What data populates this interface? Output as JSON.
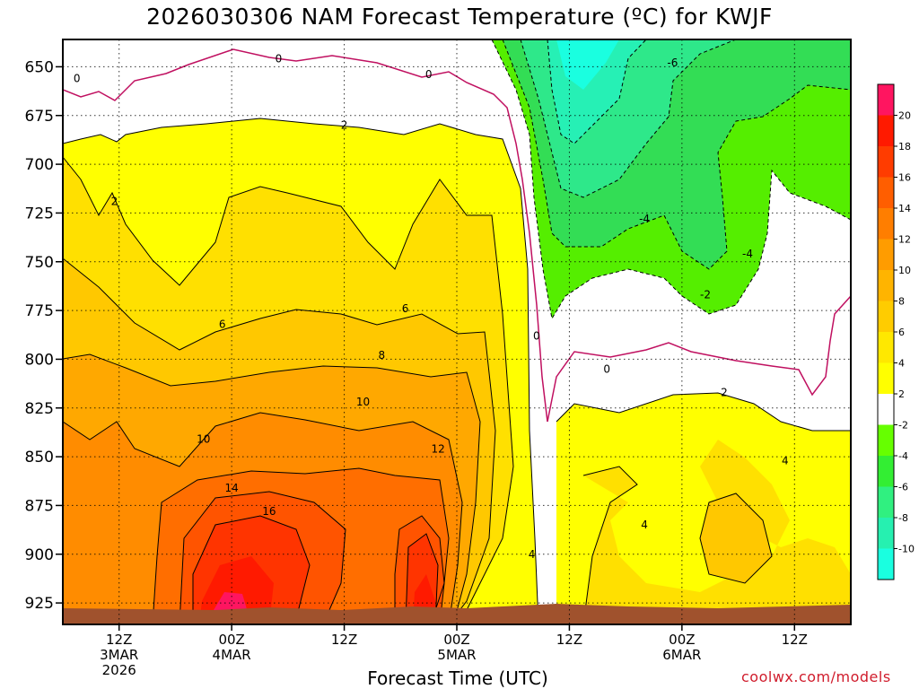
{
  "title": "2026030306 NAM Forecast Temperature (ºC) for KWJF",
  "xlabel": "Forecast Time (UTC)",
  "watermark": "coolwx.com/models",
  "chart_data": {
    "type": "heatmap",
    "title": "2026030306 NAM Forecast Temperature (ºC) for KWJF",
    "xlabel": "Forecast Time (UTC)",
    "ylabel": "",
    "y_axis": {
      "ticks": [
        650,
        675,
        700,
        725,
        750,
        775,
        800,
        825,
        850,
        875,
        900,
        925
      ],
      "range": [
        636,
        936
      ],
      "inverted": true
    },
    "x_axis": {
      "range_hours": [
        6,
        90
      ],
      "ticks": [
        {
          "hour": 12,
          "lines": [
            "12Z",
            "3MAR",
            "2026"
          ]
        },
        {
          "hour": 24,
          "lines": [
            "00Z",
            "4MAR"
          ]
        },
        {
          "hour": 36,
          "lines": [
            "12Z"
          ]
        },
        {
          "hour": 48,
          "lines": [
            "00Z",
            "5MAR"
          ]
        },
        {
          "hour": 60,
          "lines": [
            "12Z"
          ]
        },
        {
          "hour": 72,
          "lines": [
            "00Z",
            "6MAR"
          ]
        },
        {
          "hour": 84,
          "lines": [
            "12Z"
          ]
        }
      ]
    },
    "grid": true,
    "colorbar": {
      "labels": [
        20,
        18,
        16,
        14,
        12,
        10,
        8,
        6,
        4,
        2,
        -2,
        -4,
        -6,
        -8,
        -10
      ],
      "colors": [
        "#ff1560",
        "#ff1a00",
        "#ff3c00",
        "#ff5e00",
        "#ff7e00",
        "#ff9c00",
        "#ffb400",
        "#ffcc00",
        "#ffe800",
        "#ffff00",
        "#ffffff",
        "#66ff00",
        "#33ee33",
        "#30f080",
        "#26f0b0",
        "#1affe0"
      ]
    },
    "contour_labels": [
      {
        "text": "0",
        "hour": 7.5,
        "pressure": 656
      },
      {
        "text": "0",
        "hour": 29,
        "pressure": 646
      },
      {
        "text": "0",
        "hour": 56.5,
        "pressure": 788
      },
      {
        "text": "0",
        "hour": 64,
        "pressure": 805
      },
      {
        "text": "0",
        "hour": 45,
        "pressure": 654
      },
      {
        "text": "2",
        "hour": 11.5,
        "pressure": 719
      },
      {
        "text": "2",
        "hour": 36,
        "pressure": 680
      },
      {
        "text": "2",
        "hour": 76.5,
        "pressure": 817
      },
      {
        "text": "-2",
        "hour": 74.5,
        "pressure": 767
      },
      {
        "text": "-4",
        "hour": 68,
        "pressure": 728
      },
      {
        "text": "-4",
        "hour": 79,
        "pressure": 746
      },
      {
        "text": "-6",
        "hour": 71,
        "pressure": 648
      },
      {
        "text": "4",
        "hour": 56,
        "pressure": 900
      },
      {
        "text": "4",
        "hour": 68,
        "pressure": 885
      },
      {
        "text": "4",
        "hour": 83,
        "pressure": 852
      },
      {
        "text": "6",
        "hour": 23,
        "pressure": 782
      },
      {
        "text": "6",
        "hour": 42.5,
        "pressure": 774
      },
      {
        "text": "8",
        "hour": 40,
        "pressure": 798
      },
      {
        "text": "10",
        "hour": 21,
        "pressure": 841
      },
      {
        "text": "10",
        "hour": 38,
        "pressure": 822
      },
      {
        "text": "12",
        "hour": 46,
        "pressure": 846
      },
      {
        "text": "14",
        "hour": 24,
        "pressure": 866
      },
      {
        "text": "16",
        "hour": 28,
        "pressure": 878
      }
    ]
  }
}
